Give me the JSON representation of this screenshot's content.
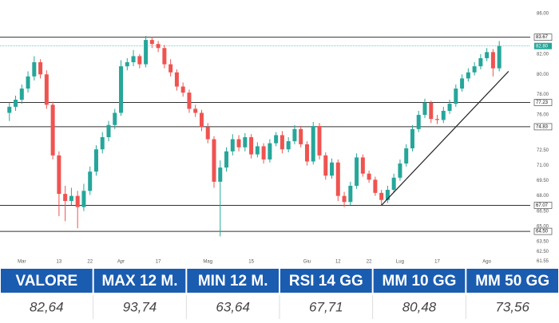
{
  "chart_data": {
    "type": "candlestick",
    "up_color": "#26a69a",
    "down_color": "#ef5350",
    "level_color": "#333333",
    "last_color": "#26a69a",
    "open": [
      76.2,
      76.8,
      77.5,
      78.6,
      79.8,
      81.2,
      80.0,
      77.0,
      72.0,
      68.2,
      67.5,
      68.0,
      66.9,
      68.5,
      70.4,
      72.6,
      73.8,
      75.0,
      76.2,
      80.8,
      81.2,
      81.8,
      81.0,
      83.4,
      83.0,
      82.6,
      81.0,
      80.2,
      78.8,
      78.2,
      76.6,
      76.2,
      74.8,
      73.6,
      69.4,
      70.8,
      72.4,
      73.6,
      72.8,
      73.8,
      72.1,
      72.9,
      71.6,
      73.2,
      74.0,
      72.6,
      73.4,
      74.6,
      73.1,
      71.4,
      74.9,
      72.0,
      70.0,
      71.3,
      68.0,
      67.4,
      69.0,
      71.8,
      70.2,
      69.6,
      68.3,
      67.6,
      68.6,
      69.8,
      71.2,
      72.7,
      74.6,
      76.0,
      77.2,
      75.6,
      75.5,
      76.4,
      77.1,
      78.6,
      79.6,
      80.2,
      80.8,
      81.6,
      82.2,
      80.6
    ],
    "high": [
      77.2,
      77.9,
      79.0,
      80.3,
      81.8,
      81.5,
      80.4,
      77.3,
      72.4,
      69.0,
      68.8,
      68.5,
      69.2,
      70.9,
      73.0,
      74.3,
      75.4,
      76.6,
      81.4,
      81.6,
      82.4,
      82.0,
      83.8,
      83.7,
      83.3,
      82.9,
      81.5,
      80.5,
      79.2,
      78.5,
      77.0,
      76.5,
      75.2,
      73.9,
      71.5,
      72.8,
      74.1,
      74.0,
      74.2,
      74.1,
      73.3,
      73.2,
      73.6,
      74.3,
      74.4,
      73.8,
      75.0,
      74.9,
      73.4,
      75.3,
      75.2,
      72.3,
      71.7,
      71.6,
      68.4,
      69.4,
      72.2,
      72.1,
      70.5,
      69.9,
      68.6,
      69.0,
      70.2,
      71.6,
      73.1,
      75.0,
      76.4,
      77.6,
      77.4,
      76.0,
      76.8,
      77.5,
      79.0,
      80.0,
      80.6,
      81.2,
      82.0,
      82.6,
      82.5,
      83.3
    ],
    "low": [
      75.4,
      76.4,
      77.1,
      78.2,
      79.4,
      79.6,
      76.6,
      71.6,
      66.0,
      65.5,
      67.1,
      64.8,
      66.5,
      68.1,
      70.0,
      72.2,
      73.4,
      74.6,
      75.9,
      80.4,
      80.8,
      80.6,
      80.7,
      82.6,
      82.2,
      80.6,
      79.8,
      78.4,
      77.8,
      76.2,
      75.8,
      74.4,
      73.2,
      68.8,
      64.0,
      70.4,
      72.0,
      72.4,
      72.4,
      71.7,
      71.8,
      71.2,
      71.3,
      72.9,
      72.2,
      72.3,
      73.1,
      72.8,
      71.0,
      71.1,
      71.6,
      69.6,
      69.7,
      67.5,
      66.9,
      67.1,
      68.7,
      69.9,
      69.3,
      68.0,
      67.1,
      67.3,
      68.3,
      69.5,
      70.9,
      72.4,
      74.3,
      75.7,
      75.2,
      75.1,
      75.2,
      76.1,
      76.8,
      78.3,
      79.3,
      79.9,
      80.5,
      81.3,
      79.8,
      80.3
    ],
    "close": [
      76.8,
      77.5,
      78.6,
      79.8,
      81.2,
      80.0,
      77.0,
      72.0,
      68.2,
      67.5,
      68.0,
      66.9,
      68.5,
      70.4,
      72.6,
      73.8,
      75.0,
      76.2,
      80.8,
      81.2,
      81.8,
      81.0,
      83.4,
      83.0,
      82.6,
      81.0,
      80.2,
      78.8,
      78.2,
      76.6,
      76.2,
      74.8,
      73.6,
      69.4,
      70.8,
      72.4,
      73.6,
      72.8,
      73.8,
      72.1,
      72.9,
      71.6,
      73.2,
      74.0,
      72.6,
      73.4,
      74.6,
      73.1,
      71.4,
      74.9,
      72.0,
      70.0,
      71.3,
      68.0,
      67.4,
      69.0,
      71.8,
      70.2,
      69.6,
      68.3,
      67.6,
      68.6,
      69.8,
      71.2,
      72.7,
      74.6,
      76.0,
      77.2,
      75.6,
      75.5,
      76.4,
      77.1,
      78.6,
      79.6,
      80.2,
      80.8,
      81.6,
      82.2,
      80.6,
      82.8
    ],
    "xlim": [
      -1,
      84
    ],
    "xticks": [
      {
        "value": 2,
        "label": "Mar"
      },
      {
        "value": 8,
        "label": "13"
      },
      {
        "value": 13,
        "label": "22"
      },
      {
        "value": 18,
        "label": "Apr"
      },
      {
        "value": 24,
        "label": "17"
      },
      {
        "value": 32,
        "label": "Mag"
      },
      {
        "value": 39,
        "label": "15"
      },
      {
        "value": 48,
        "label": "Giu"
      },
      {
        "value": 53,
        "label": "12"
      },
      {
        "value": 58,
        "label": "22"
      },
      {
        "value": 63,
        "label": "Lug"
      },
      {
        "value": 69,
        "label": "17"
      },
      {
        "value": 77,
        "label": "Ago"
      }
    ],
    "ylim": [
      61.2,
      86.4
    ],
    "yticks": [
      {
        "value": 86,
        "label": "86.00"
      },
      {
        "value": 82,
        "label": "82.00"
      },
      {
        "value": 80,
        "label": "80.00"
      },
      {
        "value": 78,
        "label": "78.00"
      },
      {
        "value": 76,
        "label": "76.00"
      },
      {
        "value": 72.5,
        "label": "72.50"
      },
      {
        "value": 71,
        "label": "71.00"
      },
      {
        "value": 69.5,
        "label": "69.50"
      },
      {
        "value": 68,
        "label": "68.00"
      },
      {
        "value": 66.5,
        "label": "66.50"
      },
      {
        "value": 65,
        "label": "65.00"
      },
      {
        "value": 63.5,
        "label": "63.50"
      },
      {
        "value": 62.5,
        "label": "62.50"
      },
      61.55
    ],
    "levels": [
      83.67,
      77.23,
      74.83,
      67.07,
      {
        "value": 64.5,
        "label": "64.50"
      }
    ],
    "last_price": {
      "value": 82.8,
      "label": "82.80"
    },
    "trendline": {
      "x": [
        60,
        80.5
      ],
      "y": [
        67.07,
        80.3
      ]
    }
  },
  "table": {
    "headers": [
      "VALORE",
      "MAX 12 M.",
      "MIN 12 M.",
      "RSI 14 GG",
      "MM 10 GG",
      "MM 50 GG"
    ],
    "values": [
      "82,64",
      "93,74",
      "63,64",
      "67,71",
      "80,48",
      "73,56"
    ]
  }
}
